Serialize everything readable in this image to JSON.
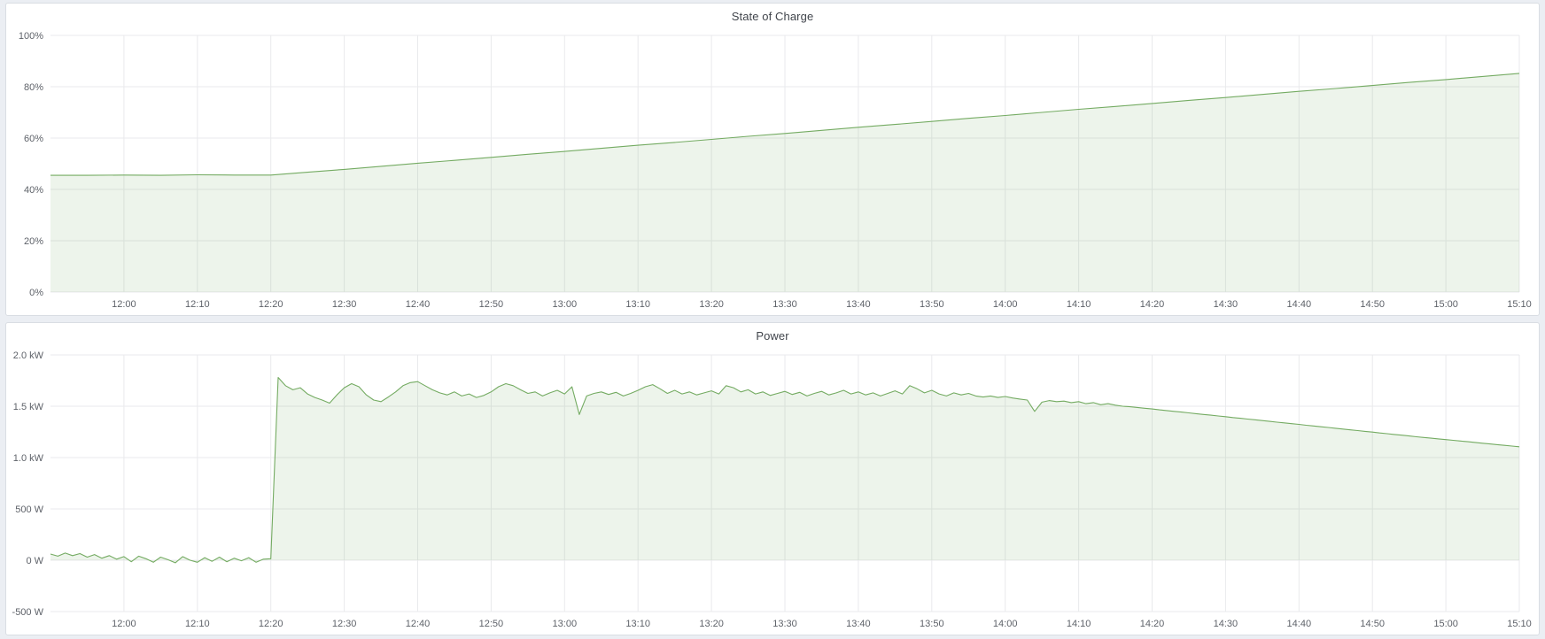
{
  "style": {
    "page_bg": "#ebeef3",
    "panel_bg": "#ffffff",
    "panel_border": "#d9dde3",
    "title_text": "#41454c",
    "tick_text": "#5e6269",
    "grid_color": "#e9eaec",
    "line_color": "#74ab62",
    "fill_color": "rgba(116,171,98,0.13)"
  },
  "chart_data": [
    {
      "type": "area",
      "title": "State of Charge",
      "ylabel": "",
      "xlabel": "",
      "unit": "percent",
      "xlim": [
        710,
        910
      ],
      "ylim": [
        0,
        100
      ],
      "grid": true,
      "legend": "none",
      "y_ticks": [
        {
          "v": 0,
          "label": "0%"
        },
        {
          "v": 20,
          "label": "20%"
        },
        {
          "v": 40,
          "label": "40%"
        },
        {
          "v": 60,
          "label": "60%"
        },
        {
          "v": 80,
          "label": "80%"
        },
        {
          "v": 100,
          "label": "100%"
        }
      ],
      "x_ticks": [
        {
          "t": 720,
          "label": "12:00"
        },
        {
          "t": 730,
          "label": "12:10"
        },
        {
          "t": 740,
          "label": "12:20"
        },
        {
          "t": 750,
          "label": "12:30"
        },
        {
          "t": 760,
          "label": "12:40"
        },
        {
          "t": 770,
          "label": "12:50"
        },
        {
          "t": 780,
          "label": "13:00"
        },
        {
          "t": 790,
          "label": "13:10"
        },
        {
          "t": 800,
          "label": "13:20"
        },
        {
          "t": 810,
          "label": "13:30"
        },
        {
          "t": 820,
          "label": "13:40"
        },
        {
          "t": 830,
          "label": "13:50"
        },
        {
          "t": 840,
          "label": "14:00"
        },
        {
          "t": 850,
          "label": "14:10"
        },
        {
          "t": 860,
          "label": "14:20"
        },
        {
          "t": 870,
          "label": "14:30"
        },
        {
          "t": 880,
          "label": "14:40"
        },
        {
          "t": 890,
          "label": "14:50"
        },
        {
          "t": 900,
          "label": "15:00"
        },
        {
          "t": 910,
          "label": "15:10"
        }
      ],
      "points": [
        [
          710,
          45.5
        ],
        [
          715,
          45.5
        ],
        [
          720,
          45.6
        ],
        [
          725,
          45.5
        ],
        [
          730,
          45.7
        ],
        [
          735,
          45.6
        ],
        [
          740,
          45.6
        ],
        [
          745,
          46.7
        ],
        [
          750,
          47.8
        ],
        [
          755,
          49
        ],
        [
          760,
          50.2
        ],
        [
          765,
          51.3
        ],
        [
          770,
          52.5
        ],
        [
          775,
          53.7
        ],
        [
          780,
          54.8
        ],
        [
          785,
          56
        ],
        [
          790,
          57.2
        ],
        [
          795,
          58.3
        ],
        [
          800,
          59.5
        ],
        [
          805,
          60.7
        ],
        [
          810,
          61.8
        ],
        [
          815,
          63
        ],
        [
          820,
          64.2
        ],
        [
          825,
          65.3
        ],
        [
          830,
          66.5
        ],
        [
          835,
          67.7
        ],
        [
          840,
          68.8
        ],
        [
          845,
          70
        ],
        [
          850,
          71.2
        ],
        [
          855,
          72.3
        ],
        [
          860,
          73.5
        ],
        [
          865,
          74.7
        ],
        [
          870,
          75.8
        ],
        [
          875,
          77
        ],
        [
          880,
          78.2
        ],
        [
          885,
          79.3
        ],
        [
          890,
          80.5
        ],
        [
          895,
          81.7
        ],
        [
          900,
          82.8
        ],
        [
          905,
          84
        ],
        [
          910,
          85.2
        ]
      ]
    },
    {
      "type": "area",
      "title": "Power",
      "ylabel": "",
      "xlabel": "",
      "unit": "watt",
      "xlim": [
        710,
        910
      ],
      "ylim": [
        -500,
        2000
      ],
      "grid": true,
      "legend": "none",
      "y_ticks": [
        {
          "v": -500,
          "label": "-500 W"
        },
        {
          "v": 0,
          "label": "0 W"
        },
        {
          "v": 500,
          "label": "500 W"
        },
        {
          "v": 1000,
          "label": "1.0 kW"
        },
        {
          "v": 1500,
          "label": "1.5 kW"
        },
        {
          "v": 2000,
          "label": "2.0 kW"
        }
      ],
      "x_ticks": [
        {
          "t": 720,
          "label": "12:00"
        },
        {
          "t": 730,
          "label": "12:10"
        },
        {
          "t": 740,
          "label": "12:20"
        },
        {
          "t": 750,
          "label": "12:30"
        },
        {
          "t": 760,
          "label": "12:40"
        },
        {
          "t": 770,
          "label": "12:50"
        },
        {
          "t": 780,
          "label": "13:00"
        },
        {
          "t": 790,
          "label": "13:10"
        },
        {
          "t": 800,
          "label": "13:20"
        },
        {
          "t": 810,
          "label": "13:30"
        },
        {
          "t": 820,
          "label": "13:40"
        },
        {
          "t": 830,
          "label": "13:50"
        },
        {
          "t": 840,
          "label": "14:00"
        },
        {
          "t": 850,
          "label": "14:10"
        },
        {
          "t": 860,
          "label": "14:20"
        },
        {
          "t": 870,
          "label": "14:30"
        },
        {
          "t": 880,
          "label": "14:40"
        },
        {
          "t": 890,
          "label": "14:50"
        },
        {
          "t": 900,
          "label": "15:00"
        },
        {
          "t": 910,
          "label": "15:10"
        }
      ],
      "points": [
        [
          710,
          60
        ],
        [
          711,
          40
        ],
        [
          712,
          70
        ],
        [
          713,
          45
        ],
        [
          714,
          65
        ],
        [
          715,
          30
        ],
        [
          716,
          55
        ],
        [
          717,
          20
        ],
        [
          718,
          45
        ],
        [
          719,
          10
        ],
        [
          720,
          35
        ],
        [
          721,
          -15
        ],
        [
          722,
          40
        ],
        [
          723,
          15
        ],
        [
          724,
          -20
        ],
        [
          725,
          30
        ],
        [
          726,
          5
        ],
        [
          727,
          -25
        ],
        [
          728,
          35
        ],
        [
          729,
          0
        ],
        [
          730,
          -20
        ],
        [
          731,
          25
        ],
        [
          732,
          -10
        ],
        [
          733,
          30
        ],
        [
          734,
          -15
        ],
        [
          735,
          20
        ],
        [
          736,
          -5
        ],
        [
          737,
          25
        ],
        [
          738,
          -20
        ],
        [
          739,
          10
        ],
        [
          740,
          15
        ],
        [
          741,
          1780
        ],
        [
          742,
          1700
        ],
        [
          743,
          1660
        ],
        [
          744,
          1680
        ],
        [
          745,
          1620
        ],
        [
          746,
          1585
        ],
        [
          747,
          1560
        ],
        [
          748,
          1530
        ],
        [
          749,
          1610
        ],
        [
          750,
          1680
        ],
        [
          751,
          1720
        ],
        [
          752,
          1690
        ],
        [
          753,
          1610
        ],
        [
          754,
          1560
        ],
        [
          755,
          1545
        ],
        [
          756,
          1590
        ],
        [
          757,
          1640
        ],
        [
          758,
          1700
        ],
        [
          759,
          1730
        ],
        [
          760,
          1740
        ],
        [
          761,
          1700
        ],
        [
          762,
          1660
        ],
        [
          763,
          1630
        ],
        [
          764,
          1610
        ],
        [
          765,
          1640
        ],
        [
          766,
          1600
        ],
        [
          767,
          1620
        ],
        [
          768,
          1585
        ],
        [
          769,
          1605
        ],
        [
          770,
          1640
        ],
        [
          771,
          1690
        ],
        [
          772,
          1720
        ],
        [
          773,
          1700
        ],
        [
          774,
          1660
        ],
        [
          775,
          1625
        ],
        [
          776,
          1640
        ],
        [
          777,
          1600
        ],
        [
          778,
          1630
        ],
        [
          779,
          1655
        ],
        [
          780,
          1620
        ],
        [
          781,
          1690
        ],
        [
          782,
          1420
        ],
        [
          783,
          1600
        ],
        [
          784,
          1625
        ],
        [
          785,
          1640
        ],
        [
          786,
          1615
        ],
        [
          787,
          1635
        ],
        [
          788,
          1600
        ],
        [
          789,
          1625
        ],
        [
          790,
          1655
        ],
        [
          791,
          1690
        ],
        [
          792,
          1710
        ],
        [
          793,
          1670
        ],
        [
          794,
          1625
        ],
        [
          795,
          1655
        ],
        [
          796,
          1620
        ],
        [
          797,
          1640
        ],
        [
          798,
          1610
        ],
        [
          799,
          1630
        ],
        [
          800,
          1650
        ],
        [
          801,
          1620
        ],
        [
          802,
          1700
        ],
        [
          803,
          1680
        ],
        [
          804,
          1640
        ],
        [
          805,
          1660
        ],
        [
          806,
          1620
        ],
        [
          807,
          1640
        ],
        [
          808,
          1605
        ],
        [
          809,
          1625
        ],
        [
          810,
          1645
        ],
        [
          811,
          1615
        ],
        [
          812,
          1635
        ],
        [
          813,
          1600
        ],
        [
          814,
          1625
        ],
        [
          815,
          1645
        ],
        [
          816,
          1610
        ],
        [
          817,
          1630
        ],
        [
          818,
          1655
        ],
        [
          819,
          1620
        ],
        [
          820,
          1640
        ],
        [
          821,
          1610
        ],
        [
          822,
          1630
        ],
        [
          823,
          1600
        ],
        [
          824,
          1625
        ],
        [
          825,
          1650
        ],
        [
          826,
          1620
        ],
        [
          827,
          1700
        ],
        [
          828,
          1670
        ],
        [
          829,
          1630
        ],
        [
          830,
          1655
        ],
        [
          831,
          1620
        ],
        [
          832,
          1600
        ],
        [
          833,
          1630
        ],
        [
          834,
          1610
        ],
        [
          835,
          1625
        ],
        [
          836,
          1600
        ],
        [
          837,
          1590
        ],
        [
          838,
          1600
        ],
        [
          839,
          1585
        ],
        [
          840,
          1595
        ],
        [
          841,
          1580
        ],
        [
          842,
          1570
        ],
        [
          843,
          1560
        ],
        [
          844,
          1450
        ],
        [
          845,
          1540
        ],
        [
          846,
          1555
        ],
        [
          847,
          1545
        ],
        [
          848,
          1550
        ],
        [
          849,
          1535
        ],
        [
          850,
          1545
        ],
        [
          851,
          1525
        ],
        [
          852,
          1535
        ],
        [
          853,
          1515
        ],
        [
          854,
          1525
        ],
        [
          855,
          1510
        ],
        [
          856,
          1500
        ],
        [
          857,
          1495
        ],
        [
          858,
          1488
        ],
        [
          859,
          1480
        ],
        [
          860,
          1473
        ],
        [
          861,
          1465
        ],
        [
          862,
          1458
        ],
        [
          863,
          1450
        ],
        [
          864,
          1443
        ],
        [
          865,
          1435
        ],
        [
          866,
          1428
        ],
        [
          867,
          1420
        ],
        [
          868,
          1413
        ],
        [
          869,
          1405
        ],
        [
          870,
          1398
        ],
        [
          871,
          1390
        ],
        [
          872,
          1383
        ],
        [
          873,
          1375
        ],
        [
          874,
          1368
        ],
        [
          875,
          1360
        ],
        [
          876,
          1353
        ],
        [
          877,
          1345
        ],
        [
          878,
          1338
        ],
        [
          879,
          1330
        ],
        [
          880,
          1323
        ],
        [
          881,
          1315
        ],
        [
          882,
          1308
        ],
        [
          883,
          1300
        ],
        [
          884,
          1293
        ],
        [
          885,
          1285
        ],
        [
          886,
          1278
        ],
        [
          887,
          1270
        ],
        [
          888,
          1263
        ],
        [
          889,
          1255
        ],
        [
          890,
          1248
        ],
        [
          891,
          1240
        ],
        [
          892,
          1233
        ],
        [
          893,
          1225
        ],
        [
          894,
          1218
        ],
        [
          895,
          1210
        ],
        [
          896,
          1203
        ],
        [
          897,
          1196
        ],
        [
          898,
          1189
        ],
        [
          899,
          1182
        ],
        [
          900,
          1175
        ],
        [
          901,
          1168
        ],
        [
          902,
          1161
        ],
        [
          903,
          1154
        ],
        [
          904,
          1147
        ],
        [
          905,
          1140
        ],
        [
          906,
          1133
        ],
        [
          907,
          1126
        ],
        [
          908,
          1119
        ],
        [
          909,
          1112
        ],
        [
          910,
          1105
        ]
      ]
    }
  ]
}
